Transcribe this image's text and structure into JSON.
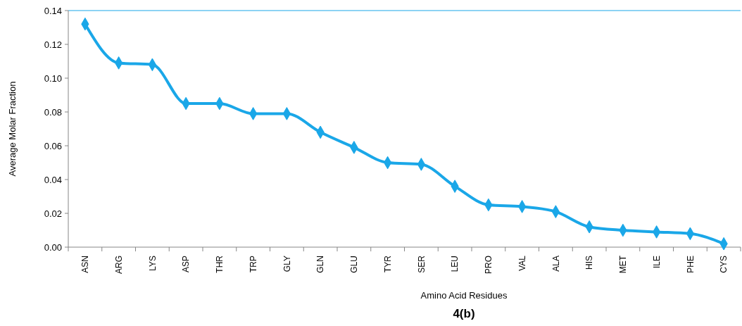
{
  "chart_data": {
    "type": "line",
    "title": "4(b)",
    "xlabel": "Amino Acid Residues",
    "ylabel": "Average Molar Fraction",
    "categories": [
      "ASN",
      "ARG",
      "LYS",
      "ASP",
      "THR",
      "TRP",
      "GLY",
      "GLN",
      "GLU",
      "TYR",
      "SER",
      "LEU",
      "PRO",
      "VAL",
      "ALA",
      "HIS",
      "MET",
      "ILE",
      "PHE",
      "CYS"
    ],
    "series": [
      {
        "color": "#1aa7e8",
        "values": [
          0.132,
          0.109,
          0.108,
          0.085,
          0.085,
          0.079,
          0.079,
          0.068,
          0.059,
          0.05,
          0.049,
          0.036,
          0.025,
          0.024,
          0.021,
          0.012,
          0.01,
          0.009,
          0.008,
          0.002
        ]
      }
    ],
    "ylim": [
      0,
      0.14
    ],
    "yticks": [
      {
        "value": 0,
        "label": "0.00"
      },
      {
        "value": 0.02,
        "label": "0.02"
      },
      {
        "value": 0.04,
        "label": "0.04"
      },
      {
        "value": 0.06,
        "label": "0.06"
      },
      {
        "value": 0.08,
        "label": "0.08"
      },
      {
        "value": 0.1,
        "label": "0.10"
      },
      {
        "value": 0.12,
        "label": "0.12"
      },
      {
        "value": 0.14,
        "label": "0.14"
      }
    ],
    "marker": "diamond",
    "line_style": "solid",
    "grid": false
  }
}
